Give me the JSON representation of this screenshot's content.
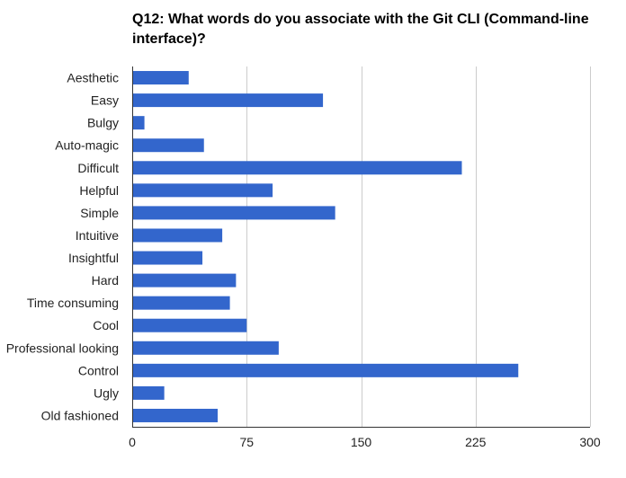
{
  "chart_data": {
    "type": "bar",
    "orientation": "horizontal",
    "title": "Q12: What words do you associate with the Git CLI (Command-line interface)?",
    "categories": [
      "Aesthetic",
      "Easy",
      "Bulgy",
      "Auto-magic",
      "Difficult",
      "Helpful",
      "Simple",
      "Intuitive",
      "Insightful",
      "Hard",
      "Time consuming",
      "Cool",
      "Professional looking",
      "Control",
      "Ugly",
      "Old fashioned"
    ],
    "values": [
      37,
      125,
      8,
      47,
      216,
      92,
      133,
      59,
      46,
      68,
      64,
      75,
      96,
      253,
      21,
      56
    ],
    "xlim": [
      0,
      300
    ],
    "xticks": [
      0,
      75,
      150,
      225,
      300
    ],
    "grid": true,
    "legend": "none",
    "bar_color": "#3366cc"
  }
}
